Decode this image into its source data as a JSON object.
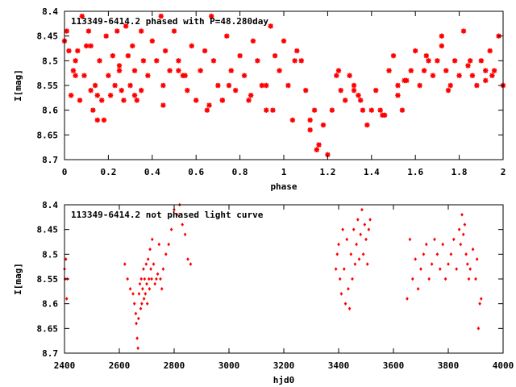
{
  "chart_data": [
    {
      "type": "scatter",
      "title": "113349-6414.2 phased with P=48.280day",
      "xlabel": "phase",
      "ylabel": "I[mag]",
      "xlim": [
        0,
        2
      ],
      "ylim": [
        8.7,
        8.4
      ],
      "y_inverted": true,
      "grid": false,
      "xticks": [
        0,
        0.2,
        0.4,
        0.6,
        0.8,
        1,
        1.2,
        1.4,
        1.6,
        1.8,
        2
      ],
      "yticks": [
        8.4,
        8.45,
        8.5,
        8.55,
        8.6,
        8.65,
        8.7
      ],
      "xtick_labels": [
        "0",
        "0.2",
        "0.4",
        "0.6",
        "0.8",
        "1",
        "1.2",
        "1.4",
        "1.6",
        "1.8",
        "2"
      ],
      "ytick_labels": [
        "8.4",
        "8.45",
        "8.5",
        "8.55",
        "8.6",
        "8.65",
        "8.7"
      ],
      "series_color": "#ff0000",
      "marker": "star",
      "x": [
        0.0,
        0.01,
        0.02,
        0.03,
        0.04,
        0.05,
        0.06,
        0.07,
        0.08,
        0.09,
        0.1,
        0.11,
        0.12,
        0.13,
        0.14,
        0.15,
        0.16,
        0.17,
        0.18,
        0.19,
        0.2,
        0.21,
        0.22,
        0.23,
        0.24,
        0.25,
        0.26,
        0.27,
        0.28,
        0.29,
        0.3,
        0.31,
        0.32,
        0.33,
        0.35,
        0.36,
        0.38,
        0.4,
        0.42,
        0.44,
        0.45,
        0.46,
        0.48,
        0.5,
        0.52,
        0.54,
        0.56,
        0.58,
        0.6,
        0.62,
        0.64,
        0.66,
        0.67,
        0.68,
        0.7,
        0.72,
        0.74,
        0.76,
        0.78,
        0.8,
        0.82,
        0.84,
        0.86,
        0.88,
        0.9,
        0.92,
        0.94,
        0.96,
        0.98,
        1.0,
        1.02,
        1.04,
        1.06,
        1.08,
        1.1,
        1.12,
        1.14,
        1.16,
        1.18,
        1.2,
        1.22,
        1.24,
        1.26,
        1.28,
        1.3,
        1.32,
        1.34,
        1.36,
        1.38,
        1.4,
        1.42,
        1.44,
        1.46,
        1.48,
        1.5,
        1.52,
        1.54,
        1.56,
        1.58,
        1.6,
        1.62,
        1.64,
        1.66,
        1.68,
        1.7,
        1.72,
        1.74,
        1.76,
        1.78,
        1.8,
        1.82,
        1.84,
        1.86,
        1.88,
        1.9,
        1.92,
        1.94,
        1.96,
        1.98,
        2.0,
        0.05,
        0.15,
        0.25,
        0.35,
        0.45,
        0.55,
        0.65,
        0.75,
        0.85,
        0.95,
        1.05,
        1.15,
        1.25,
        1.35,
        1.45,
        1.55,
        1.65,
        1.75,
        1.85,
        1.95,
        0.12,
        0.32,
        0.52,
        0.72,
        0.92,
        1.12,
        1.32,
        1.52,
        1.72,
        1.92
      ],
      "y": [
        8.46,
        8.44,
        8.48,
        8.57,
        8.52,
        8.5,
        8.48,
        8.58,
        8.41,
        8.53,
        8.47,
        8.44,
        8.56,
        8.6,
        8.55,
        8.62,
        8.5,
        8.58,
        8.62,
        8.45,
        8.53,
        8.57,
        8.49,
        8.55,
        8.44,
        8.52,
        8.56,
        8.58,
        8.43,
        8.49,
        8.55,
        8.47,
        8.52,
        8.58,
        8.44,
        8.5,
        8.53,
        8.46,
        8.5,
        8.41,
        8.55,
        8.48,
        8.52,
        8.44,
        8.5,
        8.53,
        8.56,
        8.47,
        8.58,
        8.52,
        8.48,
        8.59,
        8.41,
        8.5,
        8.55,
        8.58,
        8.45,
        8.52,
        8.56,
        8.49,
        8.53,
        8.58,
        8.46,
        8.5,
        8.55,
        8.6,
        8.43,
        8.49,
        8.52,
        8.46,
        8.55,
        8.62,
        8.48,
        8.5,
        8.56,
        8.64,
        8.6,
        8.67,
        8.63,
        8.69,
        8.6,
        8.53,
        8.56,
        8.58,
        8.53,
        8.55,
        8.57,
        8.6,
        8.63,
        8.6,
        8.56,
        8.6,
        8.61,
        8.52,
        8.49,
        8.57,
        8.6,
        8.54,
        8.52,
        8.48,
        8.55,
        8.52,
        8.5,
        8.53,
        8.5,
        8.47,
        8.52,
        8.55,
        8.5,
        8.53,
        8.44,
        8.51,
        8.53,
        8.55,
        8.5,
        8.54,
        8.48,
        8.52,
        8.45,
        8.55,
        8.53,
        8.57,
        8.51,
        8.56,
        8.59,
        8.53,
        8.6,
        8.55,
        8.57,
        8.6,
        8.5,
        8.68,
        8.52,
        8.58,
        8.61,
        8.54,
        8.49,
        8.56,
        8.5,
        8.53,
        8.47,
        8.57,
        8.52,
        8.58,
        8.55,
        8.62,
        8.56,
        8.55,
        8.45,
        8.52
      ]
    },
    {
      "type": "scatter",
      "title": "113349-6414.2 not phased light curve",
      "xlabel": "hjd0",
      "ylabel": "I[mag]",
      "xlim": [
        2400,
        4000
      ],
      "ylim": [
        8.7,
        8.4
      ],
      "y_inverted": true,
      "grid": false,
      "xticks": [
        2400,
        2600,
        2800,
        3000,
        3200,
        3400,
        3600,
        3800,
        4000
      ],
      "yticks": [
        8.4,
        8.45,
        8.5,
        8.55,
        8.6,
        8.65,
        8.7
      ],
      "xtick_labels": [
        "2400",
        "2600",
        "2800",
        "3000",
        "3200",
        "3400",
        "3600",
        "3800",
        "4000"
      ],
      "ytick_labels": [
        "8.4",
        "8.45",
        "8.5",
        "8.55",
        "8.6",
        "8.65",
        "8.7"
      ],
      "series_color": "#ff0000",
      "marker": "diamond",
      "x": [
        2400,
        2402,
        2405,
        2408,
        2410,
        2620,
        2630,
        2640,
        2650,
        2655,
        2660,
        2662,
        2665,
        2668,
        2670,
        2672,
        2675,
        2678,
        2680,
        2682,
        2685,
        2688,
        2690,
        2692,
        2695,
        2698,
        2700,
        2702,
        2705,
        2708,
        2710,
        2712,
        2715,
        2718,
        2720,
        2725,
        2730,
        2735,
        2740,
        2745,
        2750,
        2755,
        2760,
        2770,
        2780,
        2790,
        2800,
        2810,
        2820,
        2830,
        2840,
        2850,
        2860,
        3390,
        3395,
        3400,
        3405,
        3410,
        3415,
        3420,
        3425,
        3430,
        3435,
        3440,
        3445,
        3450,
        3455,
        3460,
        3465,
        3470,
        3475,
        3480,
        3485,
        3490,
        3495,
        3500,
        3505,
        3510,
        3515,
        3650,
        3660,
        3670,
        3680,
        3690,
        3700,
        3710,
        3720,
        3730,
        3740,
        3750,
        3760,
        3770,
        3780,
        3790,
        3800,
        3810,
        3820,
        3830,
        3840,
        3845,
        3850,
        3855,
        3860,
        3865,
        3870,
        3875,
        3880,
        3890,
        3900,
        3905,
        3910,
        3915,
        3920
      ],
      "y": [
        8.53,
        8.55,
        8.51,
        8.59,
        8.55,
        8.52,
        8.55,
        8.57,
        8.58,
        8.6,
        8.62,
        8.64,
        8.67,
        8.69,
        8.63,
        8.58,
        8.56,
        8.61,
        8.55,
        8.6,
        8.57,
        8.53,
        8.59,
        8.55,
        8.58,
        8.52,
        8.56,
        8.6,
        8.51,
        8.55,
        8.57,
        8.49,
        8.53,
        8.55,
        8.47,
        8.52,
        8.56,
        8.55,
        8.54,
        8.48,
        8.55,
        8.57,
        8.53,
        8.5,
        8.48,
        8.45,
        8.41,
        8.42,
        8.4,
        8.44,
        8.46,
        8.51,
        8.52,
        8.53,
        8.5,
        8.48,
        8.55,
        8.58,
        8.45,
        8.53,
        8.6,
        8.47,
        8.57,
        8.61,
        8.5,
        8.55,
        8.45,
        8.52,
        8.48,
        8.43,
        8.51,
        8.46,
        8.41,
        8.5,
        8.44,
        8.47,
        8.52,
        8.45,
        8.43,
        8.59,
        8.47,
        8.55,
        8.51,
        8.57,
        8.53,
        8.5,
        8.48,
        8.55,
        8.52,
        8.47,
        8.5,
        8.53,
        8.48,
        8.55,
        8.52,
        8.5,
        8.47,
        8.53,
        8.45,
        8.48,
        8.42,
        8.46,
        8.44,
        8.5,
        8.52,
        8.55,
        8.53,
        8.49,
        8.55,
        8.51,
        8.65,
        8.6,
        8.59
      ]
    }
  ]
}
